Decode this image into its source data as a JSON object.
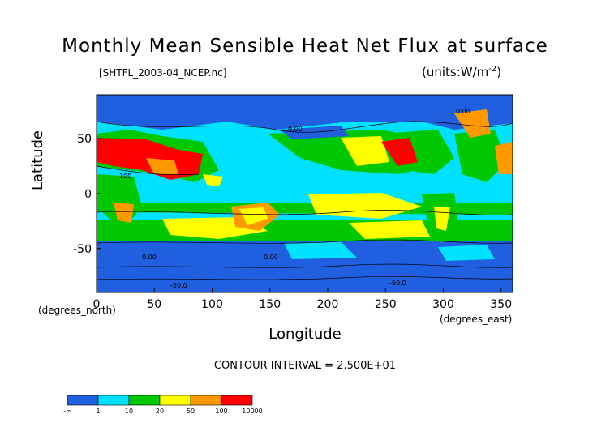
{
  "chart_data": {
    "type": "heatmap",
    "title": "Monthly Mean Sensible Heat Net Flux at surface",
    "subtitle_left": "[SHTFL_2003-04_NCEP.nc]",
    "subtitle_right": "(units:W/m^-2)",
    "xlabel": "Longitude",
    "ylabel": "Latitude",
    "x_units": "(degrees_east)",
    "y_units": "(degrees_north)",
    "xlim": [
      0,
      360
    ],
    "ylim": [
      -90,
      90
    ],
    "x_ticks": [
      0,
      50,
      100,
      150,
      200,
      250,
      300,
      350
    ],
    "y_ticks": [
      50,
      0,
      -50
    ],
    "contour_interval_label": "CONTOUR INTERVAL = 2.500E+01",
    "contour_labels": [
      "0.00",
      "0.00",
      "0.00",
      "0.00",
      "100",
      "-50.0",
      "-50.0"
    ],
    "colorbar": {
      "bins": [
        {
          "color": "#1f5fe0"
        },
        {
          "color": "#00e1ff"
        },
        {
          "color": "#00c800"
        },
        {
          "color": "#ffff00"
        },
        {
          "color": "#ff9900"
        },
        {
          "color": "#ff0000"
        }
      ],
      "tick_labels": [
        "-∞",
        "1",
        "10",
        "20",
        "50",
        "100",
        "10000"
      ]
    }
  },
  "colors": {
    "ocean_low": "#1f5fe0",
    "cyan": "#00e1ff",
    "green": "#00c800",
    "yellow": "#ffff00",
    "orange": "#ff9900",
    "red": "#ff0000"
  }
}
